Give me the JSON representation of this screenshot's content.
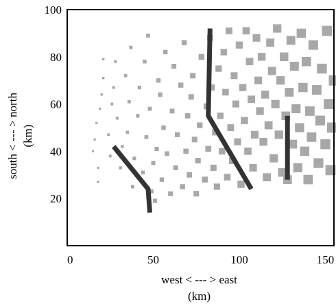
{
  "chart_data": {
    "type": "scatter",
    "title": "",
    "xlabel": "west < --- > east",
    "xlabel_unit": "(km)",
    "ylabel": "south < --- > north",
    "ylabel_unit": "(km)",
    "xlim": [
      0,
      155
    ],
    "ylim": [
      0,
      100
    ],
    "x_ticks": [
      "0",
      "50",
      "100",
      "150"
    ],
    "y_ticks": [
      "20",
      "40",
      "60",
      "80",
      "100"
    ],
    "grid": false,
    "marker_color": "#a8a8a8",
    "line_color": "#333333",
    "series": [
      {
        "type": "scatter",
        "marker": "square",
        "size_encoding": "marker size grows from west to east",
        "points": [
          [
            15,
            40
          ],
          [
            16,
            45
          ],
          [
            17,
            52
          ],
          [
            18,
            27
          ],
          [
            18,
            33
          ],
          [
            19,
            58
          ],
          [
            20,
            64
          ],
          [
            21,
            71
          ],
          [
            21,
            79
          ],
          [
            24,
            47
          ],
          [
            25,
            38
          ],
          [
            26,
            60
          ],
          [
            27,
            67
          ],
          [
            28,
            78
          ],
          [
            29,
            54
          ],
          [
            31,
            33
          ],
          [
            32,
            42
          ],
          [
            34,
            72
          ],
          [
            35,
            48
          ],
          [
            36,
            61
          ],
          [
            37,
            84
          ],
          [
            38,
            25
          ],
          [
            39,
            37
          ],
          [
            41,
            55
          ],
          [
            42,
            67
          ],
          [
            44,
            31
          ],
          [
            45,
            78
          ],
          [
            46,
            46
          ],
          [
            47,
            89
          ],
          [
            48,
            58
          ],
          [
            49,
            23
          ],
          [
            50,
            35
          ],
          [
            51,
            19
          ],
          [
            52,
            41
          ],
          [
            53,
            70
          ],
          [
            54,
            64
          ],
          [
            55,
            28
          ],
          [
            56,
            50
          ],
          [
            57,
            82
          ],
          [
            58,
            39
          ],
          [
            60,
            22
          ],
          [
            61,
            57
          ],
          [
            62,
            76
          ],
          [
            63,
            33
          ],
          [
            64,
            47
          ],
          [
            66,
            68
          ],
          [
            67,
            25
          ],
          [
            68,
            86
          ],
          [
            69,
            40
          ],
          [
            70,
            55
          ],
          [
            71,
            30
          ],
          [
            72,
            63
          ],
          [
            73,
            72
          ],
          [
            74,
            45
          ],
          [
            75,
            22
          ],
          [
            76,
            36
          ],
          [
            77,
            51
          ],
          [
            78,
            80
          ],
          [
            80,
            28
          ],
          [
            81,
            59
          ],
          [
            82,
            41
          ],
          [
            83,
            88
          ],
          [
            84,
            67
          ],
          [
            85,
            33
          ],
          [
            86,
            48
          ],
          [
            87,
            25
          ],
          [
            88,
            75
          ],
          [
            89,
            55
          ],
          [
            90,
            40
          ],
          [
            91,
            82
          ],
          [
            92,
            65
          ],
          [
            93,
            29
          ],
          [
            94,
            91
          ],
          [
            95,
            50
          ],
          [
            96,
            36
          ],
          [
            97,
            72
          ],
          [
            98,
            60
          ],
          [
            99,
            44
          ],
          [
            100,
            85
          ],
          [
            101,
            26
          ],
          [
            102,
            67
          ],
          [
            103,
            53
          ],
          [
            104,
            91
          ],
          [
            105,
            40
          ],
          [
            106,
            78
          ],
          [
            107,
            62
          ],
          [
            108,
            33
          ],
          [
            109,
            47
          ],
          [
            110,
            88
          ],
          [
            111,
            70
          ],
          [
            112,
            57
          ],
          [
            113,
            80
          ],
          [
            114,
            44
          ],
          [
            115,
            64
          ],
          [
            116,
            29
          ],
          [
            117,
            51
          ],
          [
            118,
            86
          ],
          [
            119,
            74
          ],
          [
            120,
            37
          ],
          [
            121,
            60
          ],
          [
            122,
            92
          ],
          [
            123,
            47
          ],
          [
            124,
            70
          ],
          [
            125,
            31
          ],
          [
            126,
            80
          ],
          [
            127,
            55
          ],
          [
            128,
            28
          ],
          [
            129,
            65
          ],
          [
            130,
            87
          ],
          [
            131,
            43
          ],
          [
            132,
            76
          ],
          [
            133,
            58
          ],
          [
            134,
            33
          ],
          [
            135,
            50
          ],
          [
            136,
            90
          ],
          [
            137,
            67
          ],
          [
            138,
            40
          ],
          [
            139,
            78
          ],
          [
            140,
            28
          ],
          [
            141,
            57
          ],
          [
            142,
            46
          ],
          [
            143,
            85
          ],
          [
            145,
            66
          ],
          [
            146,
            35
          ],
          [
            147,
            53
          ],
          [
            148,
            75
          ],
          [
            150,
            43
          ],
          [
            151,
            91
          ],
          [
            152,
            60
          ],
          [
            153,
            32
          ],
          [
            154,
            50
          ],
          [
            155,
            70
          ]
        ]
      },
      {
        "type": "line",
        "points": [
          [
            27,
            42
          ],
          [
            47,
            24
          ],
          [
            48,
            14
          ]
        ]
      },
      {
        "type": "line",
        "points": [
          [
            83,
            92
          ],
          [
            82,
            55
          ],
          [
            107,
            24
          ]
        ]
      },
      {
        "type": "line",
        "points": [
          [
            128,
            55
          ],
          [
            128,
            28
          ]
        ]
      }
    ]
  }
}
